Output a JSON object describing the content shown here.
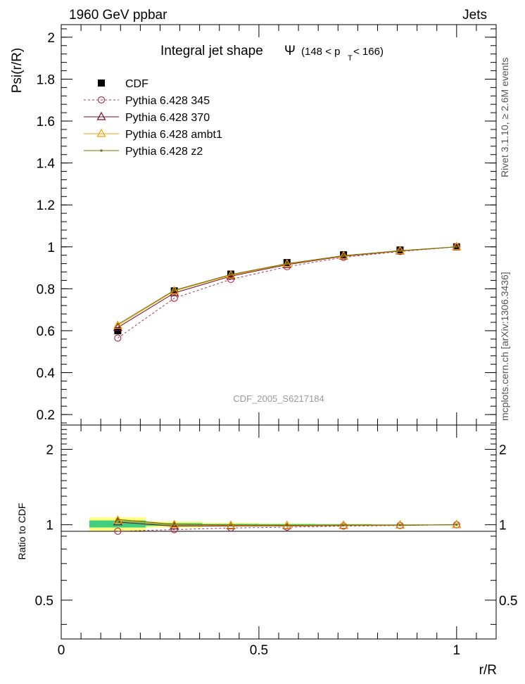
{
  "header": {
    "left": "1960 GeV ppbar",
    "right": "Jets"
  },
  "title": {
    "prefix": "Integral jet shape",
    "psi": "Ψ",
    "range_open": "(148 < p",
    "sub": "T",
    "range_close": " < 166)"
  },
  "watermark": "CDF_2005_S6217184",
  "side_labels": {
    "rivet": "Rivet 3.1.10, ≥ 2.6M events",
    "mcplots": "mcplots.cern.ch [arXiv:1306.3436]"
  },
  "colors": {
    "cdf": "#000000",
    "p345": "#b03050",
    "p370": "#7a0a28",
    "ambt1": "#f0a000",
    "z2": "#707000",
    "band_yellow": "#ffff80",
    "band_green": "#40d080"
  },
  "chart_data": [
    {
      "type": "line",
      "ylabel": "Psi(r/R)",
      "xlim": [
        0,
        1.1
      ],
      "ylim": [
        0.15,
        2.06
      ],
      "yticks": [
        0.2,
        0.4,
        0.6,
        0.8,
        1,
        1.2,
        1.4,
        1.6,
        1.8,
        2
      ],
      "ytick_labels": [
        "0.2",
        "0.4",
        "0.6",
        "0.8",
        "1",
        "1.2",
        "1.4",
        "1.6",
        "1.8",
        "2"
      ],
      "x": [
        0.143,
        0.286,
        0.429,
        0.571,
        0.714,
        0.857,
        1.0
      ],
      "legend_location": "top-left",
      "series": [
        {
          "name": "CDF",
          "values": [
            0.6,
            0.79,
            0.87,
            0.925,
            0.962,
            0.985,
            1.0
          ]
        },
        {
          "name": "Pythia 6.428 345",
          "values": [
            0.565,
            0.755,
            0.845,
            0.905,
            0.95,
            0.978,
            1.0
          ]
        },
        {
          "name": "Pythia 6.428 370",
          "values": [
            0.615,
            0.78,
            0.86,
            0.915,
            0.955,
            0.98,
            1.0
          ]
        },
        {
          "name": "Pythia 6.428 ambt1",
          "values": [
            0.625,
            0.79,
            0.865,
            0.918,
            0.957,
            0.981,
            1.0
          ]
        },
        {
          "name": "Pythia 6.428 z2",
          "values": [
            0.63,
            0.793,
            0.868,
            0.92,
            0.958,
            0.982,
            1.0
          ]
        }
      ]
    },
    {
      "type": "line",
      "ylabel": "Ratio to CDF",
      "xlabel": "r/R",
      "xlim": [
        0,
        1.1
      ],
      "ylim": [
        0.35,
        2.5
      ],
      "yscale": "log",
      "yticks": [
        0.5,
        1,
        2
      ],
      "ytick_labels": [
        "0.5",
        "1",
        "2"
      ],
      "xticks": [
        0,
        0.5,
        1
      ],
      "xtick_labels": [
        "0",
        "0.5",
        "1"
      ],
      "x": [
        0.143,
        0.286,
        0.429,
        0.571,
        0.714,
        0.857,
        1.0
      ],
      "band_yellow": [
        {
          "x0": 0.071,
          "x1": 0.214,
          "lo": 0.94,
          "hi": 1.07
        },
        {
          "x0": 0.214,
          "x1": 0.357,
          "lo": 0.975,
          "hi": 1.03
        },
        {
          "x0": 0.357,
          "x1": 0.5,
          "lo": 0.985,
          "hi": 1.018
        },
        {
          "x0": 0.5,
          "x1": 0.643,
          "lo": 0.988,
          "hi": 1.013
        },
        {
          "x0": 0.643,
          "x1": 0.786,
          "lo": 0.992,
          "hi": 1.009
        },
        {
          "x0": 0.786,
          "x1": 0.929,
          "lo": 0.995,
          "hi": 1.005
        }
      ],
      "band_green": [
        {
          "x0": 0.071,
          "x1": 0.214,
          "lo": 0.975,
          "hi": 1.04
        },
        {
          "x0": 0.214,
          "x1": 0.357,
          "lo": 0.99,
          "hi": 1.015
        },
        {
          "x0": 0.357,
          "x1": 0.5,
          "lo": 0.994,
          "hi": 1.008
        },
        {
          "x0": 0.5,
          "x1": 0.643,
          "lo": 0.995,
          "hi": 1.006
        },
        {
          "x0": 0.643,
          "x1": 0.786,
          "lo": 0.997,
          "hi": 1.004
        },
        {
          "x0": 0.786,
          "x1": 0.929,
          "lo": 0.998,
          "hi": 1.002
        }
      ],
      "series": [
        {
          "name": "Pythia 6.428 345",
          "values": [
            0.942,
            0.956,
            0.971,
            0.978,
            0.988,
            0.993,
            1.0
          ]
        },
        {
          "name": "Pythia 6.428 370",
          "values": [
            1.025,
            0.987,
            0.989,
            0.989,
            0.993,
            0.995,
            1.0
          ]
        },
        {
          "name": "Pythia 6.428 ambt1",
          "values": [
            1.042,
            1.0,
            0.994,
            0.992,
            0.995,
            0.996,
            1.0
          ]
        },
        {
          "name": "Pythia 6.428 z2",
          "values": [
            1.05,
            1.004,
            0.998,
            0.995,
            0.996,
            0.997,
            1.0
          ]
        }
      ]
    }
  ]
}
